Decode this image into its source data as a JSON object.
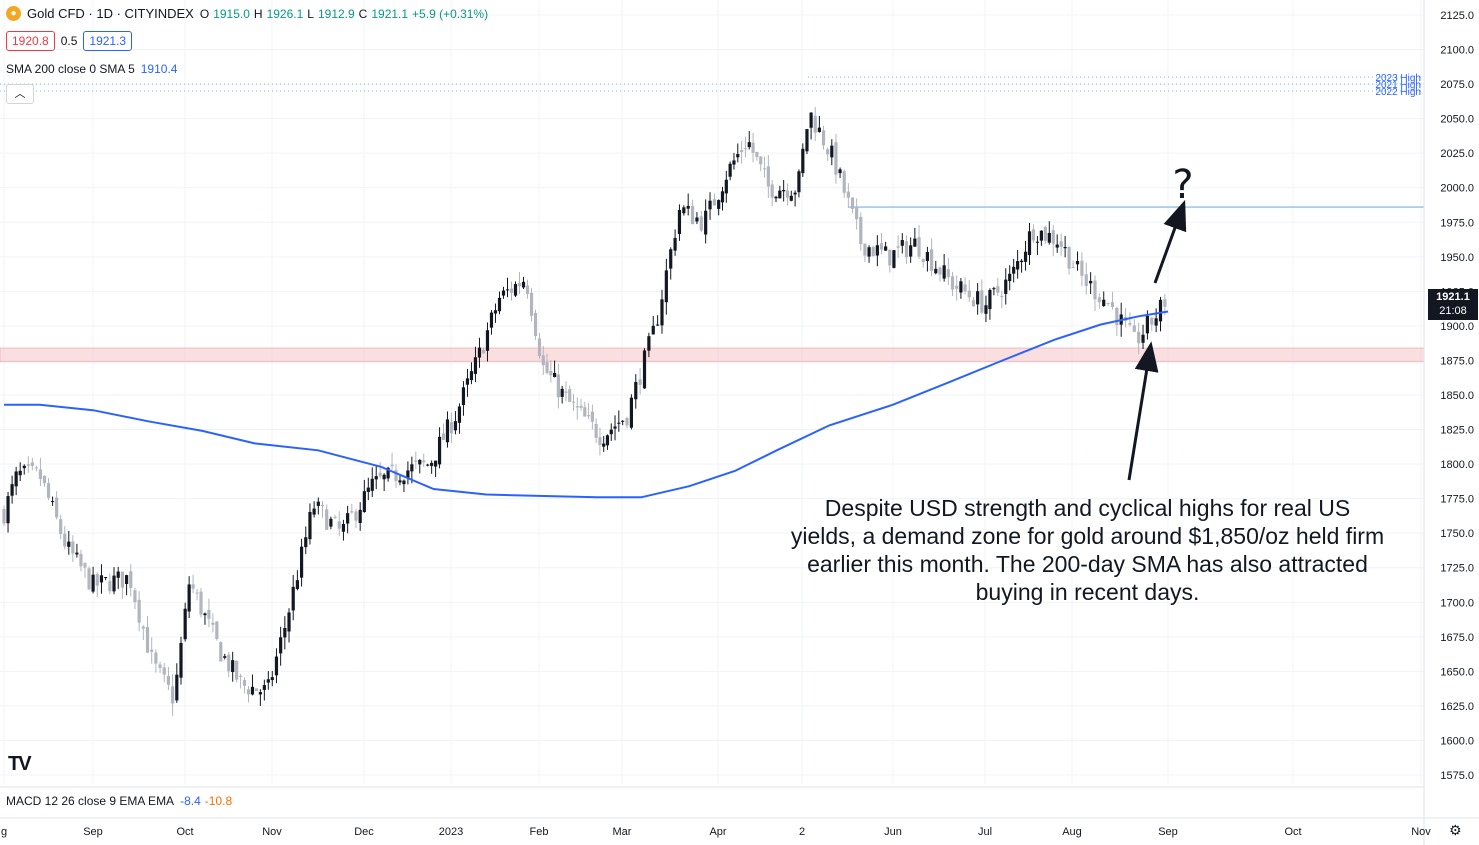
{
  "header": {
    "symbol": "Gold CFD · 1D · CITYINDEX",
    "open_label": "O",
    "open": "1915.0",
    "high_label": "H",
    "high": "1926.1",
    "low_label": "L",
    "low": "1912.9",
    "close_label": "C",
    "close": "1921.1",
    "change": "+5.9 (+0.31%)"
  },
  "bidask": {
    "sell": "1920.8",
    "spread": "0.5",
    "buy": "1921.3"
  },
  "sma_legend": {
    "label": "SMA 200 close 0 SMA 5",
    "value": "1910.4"
  },
  "macd_legend": {
    "label": "MACD 12 26 close 9 EMA EMA",
    "macd": "-8.4",
    "signal": "-10.8"
  },
  "last_price": {
    "price": "1921.1",
    "countdown": "21:08"
  },
  "annotation": {
    "text": "Despite USD strength and cyclical highs for real US yields, a demand zone for gold around $1,850/oz held firm earlier this month. The 200-day SMA has also attracted buying in recent days.",
    "question": "?"
  },
  "colors": {
    "up": "#131722",
    "down": "#b2b5be",
    "sma": "#2962ff",
    "demand_zone": "#f7c9cc",
    "level_line": "#90bfe9",
    "grid": "#f0f3fa"
  },
  "chart_data": {
    "type": "candlestick",
    "symbol": "Gold CFD",
    "timeframe": "1D",
    "y_axis": {
      "ticks": [
        2125.0,
        2100.0,
        2075.0,
        2050.0,
        2025.0,
        2000.0,
        1975.0,
        1950.0,
        1925.0,
        1900.0,
        1875.0,
        1850.0,
        1825.0,
        1800.0,
        1775.0,
        1750.0,
        1725.0,
        1700.0,
        1675.0,
        1650.0,
        1625.0,
        1600.0,
        1575.0
      ],
      "range": [
        1565,
        2135
      ]
    },
    "x_axis": {
      "ticks": [
        {
          "label": "g",
          "x": 0
        },
        {
          "label": "Sep",
          "x": 1
        },
        {
          "label": "Oct",
          "x": 2
        },
        {
          "label": "Nov",
          "x": 3
        },
        {
          "label": "Dec",
          "x": 4
        },
        {
          "label": "2023",
          "x": 5
        },
        {
          "label": "Feb",
          "x": 6
        },
        {
          "label": "Mar",
          "x": 7
        },
        {
          "label": "Apr",
          "x": 8
        },
        {
          "label": "2",
          "x": 9
        },
        {
          "label": "Jun",
          "x": 10
        },
        {
          "label": "Jul",
          "x": 11
        },
        {
          "label": "Aug",
          "x": 12
        },
        {
          "label": "Sep",
          "x": 13
        },
        {
          "label": "Oct",
          "x": 14
        },
        {
          "label": "Nov",
          "x": 15
        }
      ],
      "range": [
        0,
        15.05
      ]
    },
    "price_path": [
      {
        "x": 0.0,
        "p": 1765
      },
      {
        "x": 0.15,
        "p": 1792
      },
      {
        "x": 0.4,
        "p": 1792
      },
      {
        "x": 0.7,
        "p": 1740
      },
      {
        "x": 1.0,
        "p": 1712
      },
      {
        "x": 1.4,
        "p": 1718
      },
      {
        "x": 1.65,
        "p": 1655
      },
      {
        "x": 1.88,
        "p": 1630
      },
      {
        "x": 2.05,
        "p": 1715
      },
      {
        "x": 2.4,
        "p": 1665
      },
      {
        "x": 2.65,
        "p": 1640
      },
      {
        "x": 2.95,
        "p": 1635
      },
      {
        "x": 3.15,
        "p": 1685
      },
      {
        "x": 3.45,
        "p": 1770
      },
      {
        "x": 3.75,
        "p": 1750
      },
      {
        "x": 4.1,
        "p": 1785
      },
      {
        "x": 4.45,
        "p": 1795
      },
      {
        "x": 4.75,
        "p": 1800
      },
      {
        "x": 5.05,
        "p": 1835
      },
      {
        "x": 5.3,
        "p": 1875
      },
      {
        "x": 5.55,
        "p": 1920
      },
      {
        "x": 5.85,
        "p": 1935
      },
      {
        "x": 6.05,
        "p": 1870
      },
      {
        "x": 6.35,
        "p": 1845
      },
      {
        "x": 6.75,
        "p": 1820
      },
      {
        "x": 7.05,
        "p": 1835
      },
      {
        "x": 7.35,
        "p": 1900
      },
      {
        "x": 7.6,
        "p": 1985
      },
      {
        "x": 7.85,
        "p": 1975
      },
      {
        "x": 8.1,
        "p": 2010
      },
      {
        "x": 8.35,
        "p": 2035
      },
      {
        "x": 8.6,
        "p": 2000
      },
      {
        "x": 8.95,
        "p": 2000
      },
      {
        "x": 9.08,
        "p": 2055
      },
      {
        "x": 9.35,
        "p": 2020
      },
      {
        "x": 9.65,
        "p": 1960
      },
      {
        "x": 9.95,
        "p": 1950
      },
      {
        "x": 10.25,
        "p": 1960
      },
      {
        "x": 10.65,
        "p": 1930
      },
      {
        "x": 11.0,
        "p": 1915
      },
      {
        "x": 11.3,
        "p": 1935
      },
      {
        "x": 11.55,
        "p": 1970
      },
      {
        "x": 11.85,
        "p": 1962
      },
      {
        "x": 12.1,
        "p": 1935
      },
      {
        "x": 12.4,
        "p": 1915
      },
      {
        "x": 12.65,
        "p": 1888
      },
      {
        "x": 12.85,
        "p": 1905
      },
      {
        "x": 13.0,
        "p": 1921
      }
    ],
    "sma200": [
      {
        "x": 0.0,
        "p": 1843
      },
      {
        "x": 0.4,
        "p": 1843
      },
      {
        "x": 1.0,
        "p": 1839
      },
      {
        "x": 1.6,
        "p": 1831
      },
      {
        "x": 2.2,
        "p": 1824
      },
      {
        "x": 2.8,
        "p": 1815
      },
      {
        "x": 3.5,
        "p": 1810
      },
      {
        "x": 4.2,
        "p": 1798
      },
      {
        "x": 4.8,
        "p": 1782
      },
      {
        "x": 5.4,
        "p": 1778
      },
      {
        "x": 6.0,
        "p": 1777
      },
      {
        "x": 6.7,
        "p": 1776
      },
      {
        "x": 7.2,
        "p": 1776
      },
      {
        "x": 7.7,
        "p": 1784
      },
      {
        "x": 8.2,
        "p": 1795
      },
      {
        "x": 8.7,
        "p": 1810
      },
      {
        "x": 9.3,
        "p": 1828
      },
      {
        "x": 10.0,
        "p": 1843
      },
      {
        "x": 10.6,
        "p": 1859
      },
      {
        "x": 11.2,
        "p": 1875
      },
      {
        "x": 11.8,
        "p": 1890
      },
      {
        "x": 12.3,
        "p": 1901
      },
      {
        "x": 12.7,
        "p": 1907
      },
      {
        "x": 13.0,
        "p": 1910.4
      }
    ],
    "demand_zone": [
      1874,
      1884
    ],
    "horizontal_line": 1986,
    "level_lines": [
      {
        "label": "2023 High",
        "price": 2080
      },
      {
        "label": "2021 High",
        "price": 2075
      },
      {
        "label": "2022 High",
        "price": 2070
      }
    ],
    "last_price": 1921.1
  }
}
